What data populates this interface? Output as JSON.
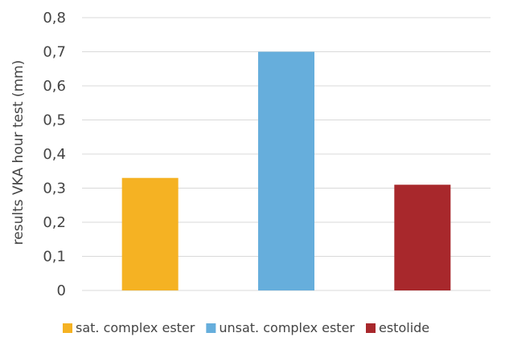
{
  "chart_data": {
    "type": "bar",
    "title": "",
    "xlabel": "",
    "ylabel": "results VKA hour test (mm)",
    "ylim": [
      0,
      0.8
    ],
    "yticks": [
      0,
      0.1,
      0.2,
      0.3,
      0.4,
      0.5,
      0.6,
      0.7,
      0.8
    ],
    "ytick_labels": [
      "0",
      "0,1",
      "0,2",
      "0,3",
      "0,4",
      "0,5",
      "0,6",
      "0,7",
      "0,8"
    ],
    "grid": true,
    "legend_position": "bottom",
    "categories": [
      "sat. complex ester",
      "unsat. complex ester",
      "estolide"
    ],
    "values": [
      0.33,
      0.7,
      0.31
    ],
    "colors": [
      "#F5B223",
      "#66AEDC",
      "#A8282C"
    ]
  }
}
